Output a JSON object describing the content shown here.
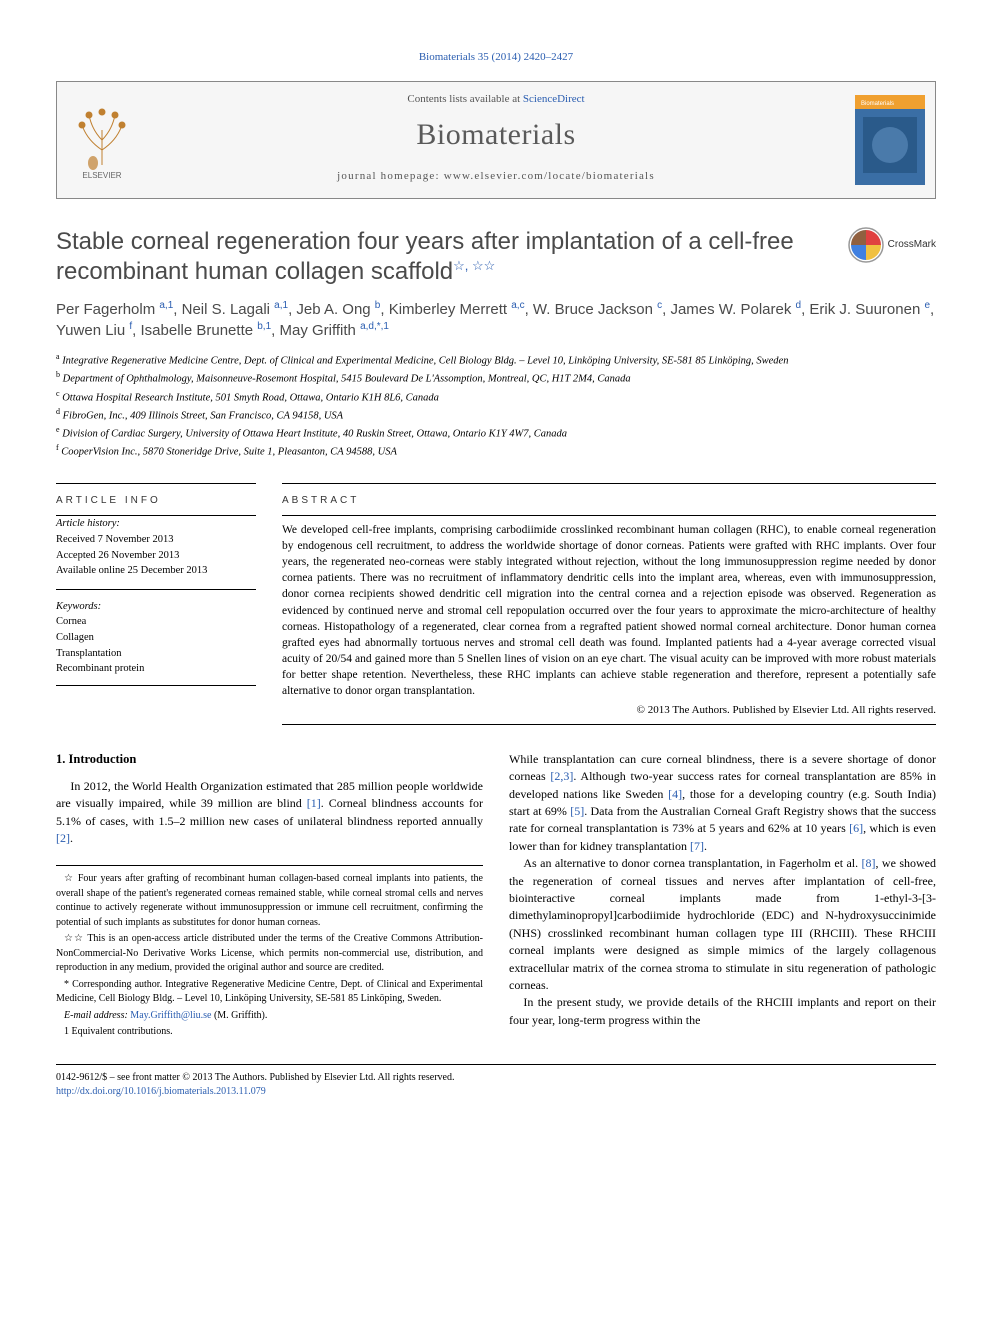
{
  "citation": "Biomaterials 35 (2014) 2420–2427",
  "header": {
    "contents_prefix": "Contents lists available at ",
    "contents_link": "ScienceDirect",
    "journal": "Biomaterials",
    "homepage_prefix": "journal homepage: ",
    "homepage_url": "www.elsevier.com/locate/biomaterials",
    "logo_alt": "ELSEVIER",
    "cover_alt": "Biomaterials"
  },
  "crossmark_label": "CrossMark",
  "title": "Stable corneal regeneration four years after implantation of a cell-free recombinant human collagen scaffold",
  "title_marks": "☆, ☆☆",
  "authors_html": "Per Fagerholm <sup>a,1</sup>, Neil S. Lagali <sup>a,1</sup>, Jeb A. Ong <sup>b</sup>, Kimberley Merrett <sup>a,c</sup>, W. Bruce Jackson <sup>c</sup>, James W. Polarek <sup>d</sup>, Erik J. Suuronen <sup>e</sup>, Yuwen Liu <sup>f</sup>, Isabelle Brunette <sup>b,1</sup>, May Griffith <sup>a,d,*,1</sup>",
  "affiliations": [
    "a Integrative Regenerative Medicine Centre, Dept. of Clinical and Experimental Medicine, Cell Biology Bldg. – Level 10, Linköping University, SE-581 85 Linköping, Sweden",
    "b Department of Ophthalmology, Maisonneuve-Rosemont Hospital, 5415 Boulevard De L'Assomption, Montreal, QC, H1T 2M4, Canada",
    "c Ottawa Hospital Research Institute, 501 Smyth Road, Ottawa, Ontario K1H 8L6, Canada",
    "d FibroGen, Inc., 409 Illinois Street, San Francisco, CA 94158, USA",
    "e Division of Cardiac Surgery, University of Ottawa Heart Institute, 40 Ruskin Street, Ottawa, Ontario K1Y 4W7, Canada",
    "f CooperVision Inc., 5870 Stoneridge Drive, Suite 1, Pleasanton, CA 94588, USA"
  ],
  "article_info": {
    "heading": "ARTICLE INFO",
    "history_label": "Article history:",
    "received": "Received 7 November 2013",
    "accepted": "Accepted 26 November 2013",
    "online": "Available online 25 December 2013",
    "keywords_label": "Keywords:",
    "keywords": [
      "Cornea",
      "Collagen",
      "Transplantation",
      "Recombinant protein"
    ]
  },
  "abstract": {
    "heading": "ABSTRACT",
    "text": "We developed cell-free implants, comprising carbodiimide crosslinked recombinant human collagen (RHC), to enable corneal regeneration by endogenous cell recruitment, to address the worldwide shortage of donor corneas. Patients were grafted with RHC implants. Over four years, the regenerated neo-corneas were stably integrated without rejection, without the long immunosuppression regime needed by donor cornea patients. There was no recruitment of inflammatory dendritic cells into the implant area, whereas, even with immunosuppression, donor cornea recipients showed dendritic cell migration into the central cornea and a rejection episode was observed. Regeneration as evidenced by continued nerve and stromal cell repopulation occurred over the four years to approximate the micro-architecture of healthy corneas. Histopathology of a regenerated, clear cornea from a regrafted patient showed normal corneal architecture. Donor human cornea grafted eyes had abnormally tortuous nerves and stromal cell death was found. Implanted patients had a 4-year average corrected visual acuity of 20/54 and gained more than 5 Snellen lines of vision on an eye chart. The visual acuity can be improved with more robust materials for better shape retention. Nevertheless, these RHC implants can achieve stable regeneration and therefore, represent a potentially safe alternative to donor organ transplantation.",
    "copyright": "© 2013 The Authors. Published by Elsevier Ltd. All rights reserved."
  },
  "intro": {
    "heading": "1. Introduction",
    "p1_a": "In 2012, the World Health Organization estimated that 285 million people worldwide are visually impaired, while 39 million are blind ",
    "p1_link1": "[1]",
    "p1_b": ". Corneal blindness accounts for 5.1% of cases, with 1.5–2 million new cases of unilateral blindness reported annually ",
    "p1_link2": "[2]",
    "p1_c": ".",
    "p2_a": "While transplantation can cure corneal blindness, there is a severe shortage of donor corneas ",
    "p2_link1": "[2,3]",
    "p2_b": ". Although two-year success rates for corneal transplantation are 85% in developed nations like Sweden ",
    "p2_link2": "[4]",
    "p2_c": ", those for a developing country (e.g. South India) start at 69% ",
    "p2_link3": "[5]",
    "p2_d": ". Data from the Australian Corneal Graft Registry shows that the success rate for corneal transplantation is 73% at 5 years and 62% at 10 years ",
    "p2_link4": "[6]",
    "p2_e": ", which is even lower than for kidney transplantation ",
    "p2_link5": "[7]",
    "p2_f": ".",
    "p3_a": "As an alternative to donor cornea transplantation, in Fagerholm et al. ",
    "p3_link1": "[8]",
    "p3_b": ", we showed the regeneration of corneal tissues and nerves after implantation of cell-free, biointeractive corneal implants made from 1-ethyl-3-[3-dimethylaminopropyl]carbodiimide hydrochloride (EDC) and N-hydroxysuccinimide (NHS) crosslinked recombinant human collagen type III (RHCIII). These RHCIII corneal implants were designed as simple mimics of the largely collagenous extracellular matrix of the cornea stroma to stimulate in situ regeneration of pathologic corneas.",
    "p4": "In the present study, we provide details of the RHCIII implants and report on their four year, long-term progress within the"
  },
  "footnotes": {
    "f1": "☆ Four years after grafting of recombinant human collagen-based corneal implants into patients, the overall shape of the patient's regenerated corneas remained stable, while corneal stromal cells and nerves continue to actively regenerate without immunosuppression or immune cell recruitment, confirming the potential of such implants as substitutes for donor human corneas.",
    "f2": "☆☆ This is an open-access article distributed under the terms of the Creative Commons Attribution-NonCommercial-No Derivative Works License, which permits non-commercial use, distribution, and reproduction in any medium, provided the original author and source are credited.",
    "f3": "* Corresponding author. Integrative Regenerative Medicine Centre, Dept. of Clinical and Experimental Medicine, Cell Biology Bldg. – Level 10, Linköping University, SE-581 85 Linköping, Sweden.",
    "f4_label": "E-mail address: ",
    "f4_email": "May.Griffith@liu.se",
    "f4_suffix": " (M. Griffith).",
    "f5": "1 Equivalent contributions."
  },
  "bottom": {
    "line1": "0142-9612/$ – see front matter © 2013 The Authors. Published by Elsevier Ltd. All rights reserved.",
    "doi": "http://dx.doi.org/10.1016/j.biomaterials.2013.11.079"
  },
  "colors": {
    "link": "#2a5db0",
    "text": "#000000",
    "heading_gray": "#4a4a4a",
    "header_bg": "#f6f6f6"
  }
}
